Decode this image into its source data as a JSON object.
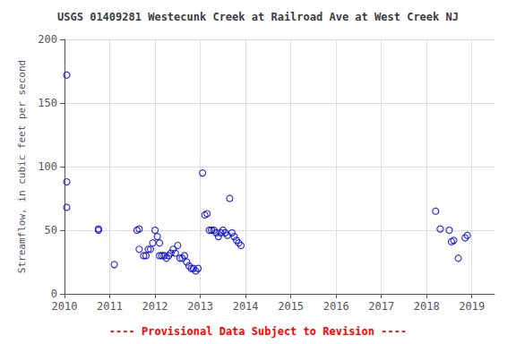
{
  "chart_data": {
    "type": "scatter",
    "title": "USGS 01409281 Westecunk Creek at Railroad Ave at West Creek NJ",
    "ylabel": "Streamflow, in cubic feet per second",
    "annotations": [
      {
        "text": "---- Provisional Data Subject to Revision ----",
        "color": "#ff0000"
      }
    ],
    "color": "#0000cc",
    "marker": "circle",
    "grid": true,
    "xlim": [
      2010.0,
      2019.5
    ],
    "xticks": [
      2010,
      2011,
      2012,
      2013,
      2014,
      2015,
      2016,
      2017,
      2018,
      2019
    ],
    "ylim": [
      0,
      200
    ],
    "yticks": [
      0,
      50,
      100,
      150,
      200
    ],
    "x": [
      2010.05,
      2010.05,
      2010.05,
      2010.75,
      2010.75,
      2011.1,
      2011.6,
      2011.65,
      2011.65,
      2011.75,
      2011.8,
      2011.85,
      2011.9,
      2011.95,
      2012.0,
      2012.05,
      2012.1,
      2012.1,
      2012.15,
      2012.2,
      2012.25,
      2012.3,
      2012.35,
      2012.4,
      2012.45,
      2012.5,
      2012.55,
      2012.6,
      2012.65,
      2012.7,
      2012.75,
      2012.8,
      2012.85,
      2012.9,
      2012.95,
      2013.05,
      2013.1,
      2013.15,
      2013.2,
      2013.25,
      2013.3,
      2013.35,
      2013.4,
      2013.45,
      2013.5,
      2013.55,
      2013.6,
      2013.65,
      2013.7,
      2013.75,
      2013.8,
      2013.85,
      2013.9,
      2018.2,
      2018.3,
      2018.5,
      2018.55,
      2018.6,
      2018.7,
      2018.85,
      2018.9
    ],
    "values": [
      172,
      88,
      68,
      51,
      50,
      23,
      50,
      51,
      35,
      30,
      30,
      35,
      35,
      40,
      50,
      45,
      40,
      30,
      30,
      30,
      28,
      30,
      32,
      35,
      32,
      38,
      28,
      28,
      30,
      25,
      22,
      20,
      20,
      18,
      20,
      95,
      62,
      63,
      50,
      50,
      50,
      48,
      45,
      48,
      50,
      48,
      46,
      75,
      48,
      45,
      42,
      40,
      38,
      65,
      51,
      50,
      41,
      42,
      28,
      44,
      46
    ]
  }
}
